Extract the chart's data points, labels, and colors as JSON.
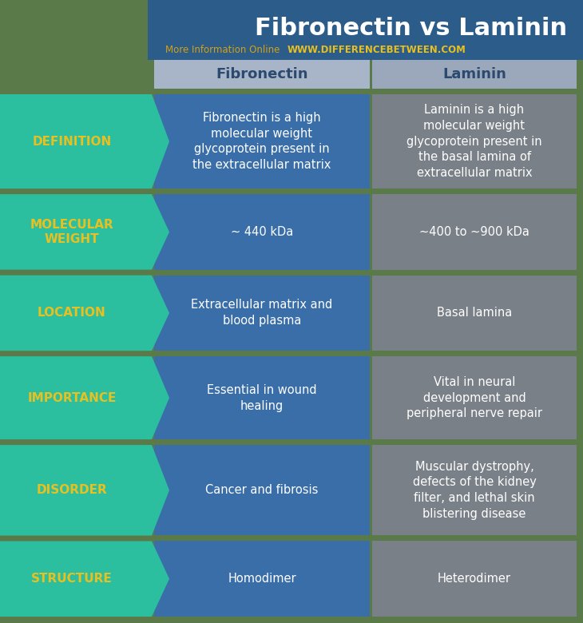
{
  "title": "Fibronectin vs Laminin",
  "subtitle": "More Information Online",
  "website": "WWW.DIFFERENCEBETWEEN.COM",
  "col_headers": [
    "Fibronectin",
    "Laminin"
  ],
  "rows": [
    {
      "label": "DEFINITION",
      "fibronectin": "Fibronectin is a high\nmolecular weight\nglycoprotein present in\nthe extracellular matrix",
      "laminin": "Laminin is a high\nmolecular weight\nglycoprotein present in\nthe basal lamina of\nextracellular matrix"
    },
    {
      "label": "MOLECULAR\nWEIGHT",
      "fibronectin": "~ 440 kDa",
      "laminin": "~400 to ~900 kDa"
    },
    {
      "label": "LOCATION",
      "fibronectin": "Extracellular matrix and\nblood plasma",
      "laminin": "Basal lamina"
    },
    {
      "label": "IMPORTANCE",
      "fibronectin": "Essential in wound\nhealing",
      "laminin": "Vital in neural\ndevelopment and\nperipheral nerve repair"
    },
    {
      "label": "DISORDER",
      "fibronectin": "Cancer and fibrosis",
      "laminin": "Muscular dystrophy,\ndefects of the kidney\nfilter, and lethal skin\nblistering disease"
    },
    {
      "label": "STRUCTURE",
      "fibronectin": "Homodimer",
      "laminin": "Heterodimer"
    }
  ],
  "colors": {
    "title_bg": "#2B5C8A",
    "title_text": "#FFFFFF",
    "subtitle_text": "#D4A017",
    "website_text": "#E8C020",
    "header_bg": "#A8B4C8",
    "header_text": "#2B4A6E",
    "label_bg": "#2BBFA0",
    "label_text": "#E8C020",
    "fibronectin_bg": "#3A6EA8",
    "laminin_bg": "#7A8088",
    "cell_text": "#FFFFFF",
    "bg_color": "#5B7A4A",
    "gap_color": "#5B7A4A"
  },
  "figsize": [
    7.3,
    7.8
  ],
  "dpi": 100,
  "title_fontsize": 22,
  "header_fontsize": 13,
  "label_fontsize": 11,
  "cell_fontsize": 10.5
}
